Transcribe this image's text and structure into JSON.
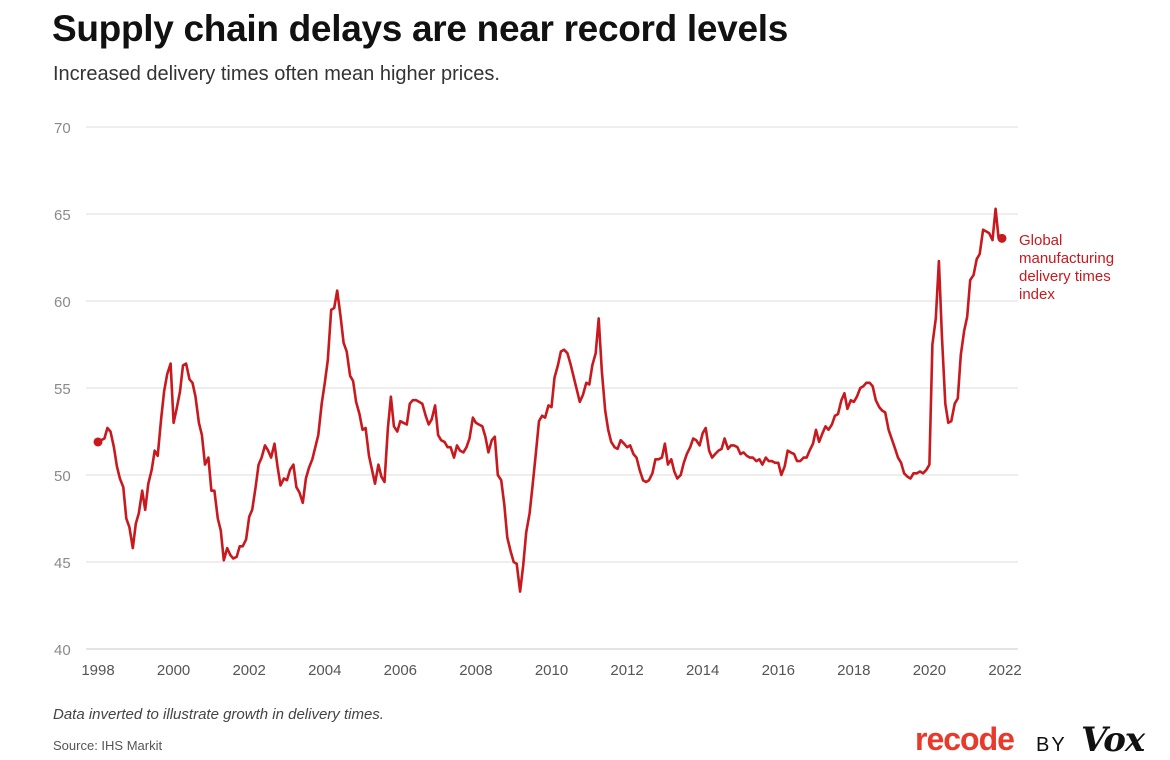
{
  "header": {
    "title": "Supply chain delays are near record levels",
    "subtitle": "Increased delivery times often mean higher prices."
  },
  "footer": {
    "note": "Data inverted to illustrate growth in delivery times.",
    "source": "Source: IHS Markit"
  },
  "brand": {
    "recode": "recode",
    "by": "BY",
    "vox": "Vox",
    "recode_color": "#e8392a"
  },
  "chart_data": {
    "type": "line",
    "xlim": [
      1998,
      2022
    ],
    "ylim": [
      40,
      70
    ],
    "yticks": [
      40,
      45,
      50,
      55,
      60,
      65,
      70
    ],
    "xticks": [
      1998,
      2000,
      2002,
      2004,
      2006,
      2008,
      2010,
      2012,
      2014,
      2016,
      2018,
      2020,
      2022
    ],
    "grid": "horizontal",
    "line_color": "#c8191e",
    "series": [
      {
        "name": "Global manufacturing delivery times index",
        "label_lines": [
          "Global",
          "manufacturing",
          "delivery times",
          "index"
        ],
        "points": [
          [
            1998.0,
            51.9
          ],
          [
            1998.17,
            52.1
          ],
          [
            1998.25,
            52.7
          ],
          [
            1998.33,
            52.5
          ],
          [
            1998.42,
            51.6
          ],
          [
            1998.5,
            50.5
          ],
          [
            1998.58,
            49.8
          ],
          [
            1998.67,
            49.3
          ],
          [
            1998.75,
            47.5
          ],
          [
            1998.83,
            47.0
          ],
          [
            1998.92,
            45.8
          ],
          [
            1999.0,
            47.2
          ],
          [
            1999.08,
            47.8
          ],
          [
            1999.17,
            49.1
          ],
          [
            1999.25,
            48.0
          ],
          [
            1999.33,
            49.5
          ],
          [
            1999.42,
            50.3
          ],
          [
            1999.5,
            51.4
          ],
          [
            1999.58,
            51.1
          ],
          [
            1999.67,
            53.2
          ],
          [
            1999.75,
            54.8
          ],
          [
            1999.83,
            55.8
          ],
          [
            1999.92,
            56.4
          ],
          [
            2000.0,
            53.0
          ],
          [
            2000.08,
            53.8
          ],
          [
            2000.17,
            54.8
          ],
          [
            2000.25,
            56.3
          ],
          [
            2000.33,
            56.4
          ],
          [
            2000.42,
            55.5
          ],
          [
            2000.5,
            55.3
          ],
          [
            2000.58,
            54.5
          ],
          [
            2000.67,
            53.0
          ],
          [
            2000.75,
            52.3
          ],
          [
            2000.83,
            50.6
          ],
          [
            2000.92,
            51.0
          ],
          [
            2001.0,
            49.1
          ],
          [
            2001.08,
            49.1
          ],
          [
            2001.17,
            47.5
          ],
          [
            2001.25,
            46.8
          ],
          [
            2001.33,
            45.1
          ],
          [
            2001.42,
            45.8
          ],
          [
            2001.5,
            45.4
          ],
          [
            2001.58,
            45.2
          ],
          [
            2001.67,
            45.3
          ],
          [
            2001.75,
            45.9
          ],
          [
            2001.83,
            45.9
          ],
          [
            2001.92,
            46.3
          ],
          [
            2002.0,
            47.6
          ],
          [
            2002.08,
            48.0
          ],
          [
            2002.17,
            49.3
          ],
          [
            2002.25,
            50.6
          ],
          [
            2002.33,
            51.0
          ],
          [
            2002.42,
            51.7
          ],
          [
            2002.5,
            51.4
          ],
          [
            2002.58,
            51.0
          ],
          [
            2002.67,
            51.8
          ],
          [
            2002.75,
            50.5
          ],
          [
            2002.83,
            49.4
          ],
          [
            2002.92,
            49.8
          ],
          [
            2003.0,
            49.7
          ],
          [
            2003.08,
            50.3
          ],
          [
            2003.17,
            50.6
          ],
          [
            2003.25,
            49.3
          ],
          [
            2003.33,
            49.0
          ],
          [
            2003.42,
            48.4
          ],
          [
            2003.5,
            49.8
          ],
          [
            2003.58,
            50.4
          ],
          [
            2003.67,
            50.9
          ],
          [
            2003.75,
            51.6
          ],
          [
            2003.83,
            52.3
          ],
          [
            2003.92,
            54.1
          ],
          [
            2004.0,
            55.3
          ],
          [
            2004.08,
            56.6
          ],
          [
            2004.17,
            59.5
          ],
          [
            2004.25,
            59.6
          ],
          [
            2004.33,
            60.6
          ],
          [
            2004.42,
            59.1
          ],
          [
            2004.5,
            57.6
          ],
          [
            2004.58,
            57.1
          ],
          [
            2004.67,
            55.7
          ],
          [
            2004.75,
            55.4
          ],
          [
            2004.83,
            54.2
          ],
          [
            2004.92,
            53.5
          ],
          [
            2005.0,
            52.6
          ],
          [
            2005.08,
            52.7
          ],
          [
            2005.17,
            51.1
          ],
          [
            2005.25,
            50.3
          ],
          [
            2005.33,
            49.5
          ],
          [
            2005.42,
            50.6
          ],
          [
            2005.5,
            49.9
          ],
          [
            2005.58,
            49.6
          ],
          [
            2005.67,
            52.7
          ],
          [
            2005.75,
            54.5
          ],
          [
            2005.83,
            52.8
          ],
          [
            2005.92,
            52.5
          ],
          [
            2006.0,
            53.1
          ],
          [
            2006.08,
            53.0
          ],
          [
            2006.17,
            52.9
          ],
          [
            2006.25,
            54.1
          ],
          [
            2006.33,
            54.3
          ],
          [
            2006.42,
            54.3
          ],
          [
            2006.5,
            54.2
          ],
          [
            2006.58,
            54.1
          ],
          [
            2006.67,
            53.4
          ],
          [
            2006.75,
            52.9
          ],
          [
            2006.83,
            53.2
          ],
          [
            2006.92,
            54.0
          ],
          [
            2007.0,
            52.3
          ],
          [
            2007.08,
            52.0
          ],
          [
            2007.17,
            51.9
          ],
          [
            2007.25,
            51.6
          ],
          [
            2007.33,
            51.6
          ],
          [
            2007.42,
            51.0
          ],
          [
            2007.5,
            51.7
          ],
          [
            2007.58,
            51.4
          ],
          [
            2007.67,
            51.3
          ],
          [
            2007.75,
            51.6
          ],
          [
            2007.83,
            52.1
          ],
          [
            2007.92,
            53.3
          ],
          [
            2008.0,
            53.0
          ],
          [
            2008.08,
            52.9
          ],
          [
            2008.17,
            52.8
          ],
          [
            2008.25,
            52.2
          ],
          [
            2008.33,
            51.3
          ],
          [
            2008.42,
            52.0
          ],
          [
            2008.5,
            52.2
          ],
          [
            2008.58,
            50.0
          ],
          [
            2008.67,
            49.7
          ],
          [
            2008.75,
            48.3
          ],
          [
            2008.83,
            46.4
          ],
          [
            2008.92,
            45.6
          ],
          [
            2009.0,
            45.0
          ],
          [
            2009.08,
            44.9
          ],
          [
            2009.17,
            43.3
          ],
          [
            2009.25,
            44.8
          ],
          [
            2009.33,
            46.7
          ],
          [
            2009.42,
            47.8
          ],
          [
            2009.5,
            49.4
          ],
          [
            2009.58,
            51.1
          ],
          [
            2009.67,
            53.1
          ],
          [
            2009.75,
            53.4
          ],
          [
            2009.83,
            53.3
          ],
          [
            2009.92,
            54.0
          ],
          [
            2010.0,
            53.9
          ],
          [
            2010.08,
            55.6
          ],
          [
            2010.17,
            56.3
          ],
          [
            2010.25,
            57.1
          ],
          [
            2010.33,
            57.2
          ],
          [
            2010.42,
            57.0
          ],
          [
            2010.5,
            56.4
          ],
          [
            2010.58,
            55.7
          ],
          [
            2010.67,
            54.9
          ],
          [
            2010.75,
            54.2
          ],
          [
            2010.83,
            54.6
          ],
          [
            2010.92,
            55.3
          ],
          [
            2011.0,
            55.2
          ],
          [
            2011.08,
            56.3
          ],
          [
            2011.17,
            57.0
          ],
          [
            2011.25,
            59.0
          ],
          [
            2011.33,
            56.0
          ],
          [
            2011.42,
            53.7
          ],
          [
            2011.5,
            52.6
          ],
          [
            2011.58,
            51.9
          ],
          [
            2011.67,
            51.6
          ],
          [
            2011.75,
            51.5
          ],
          [
            2011.83,
            52.0
          ],
          [
            2011.92,
            51.8
          ],
          [
            2012.0,
            51.6
          ],
          [
            2012.08,
            51.7
          ],
          [
            2012.17,
            51.2
          ],
          [
            2012.25,
            51.0
          ],
          [
            2012.33,
            50.3
          ],
          [
            2012.42,
            49.7
          ],
          [
            2012.5,
            49.6
          ],
          [
            2012.58,
            49.7
          ],
          [
            2012.67,
            50.1
          ],
          [
            2012.75,
            50.9
          ],
          [
            2012.83,
            50.9
          ],
          [
            2012.92,
            51.0
          ],
          [
            2013.0,
            51.8
          ],
          [
            2013.08,
            50.6
          ],
          [
            2013.17,
            50.9
          ],
          [
            2013.25,
            50.2
          ],
          [
            2013.33,
            49.8
          ],
          [
            2013.42,
            50.0
          ],
          [
            2013.5,
            50.7
          ],
          [
            2013.58,
            51.2
          ],
          [
            2013.67,
            51.6
          ],
          [
            2013.75,
            52.1
          ],
          [
            2013.83,
            52.0
          ],
          [
            2013.92,
            51.7
          ],
          [
            2014.0,
            52.4
          ],
          [
            2014.08,
            52.7
          ],
          [
            2014.17,
            51.4
          ],
          [
            2014.25,
            51.0
          ],
          [
            2014.33,
            51.2
          ],
          [
            2014.42,
            51.4
          ],
          [
            2014.5,
            51.5
          ],
          [
            2014.58,
            52.1
          ],
          [
            2014.67,
            51.5
          ],
          [
            2014.75,
            51.7
          ],
          [
            2014.83,
            51.7
          ],
          [
            2014.92,
            51.6
          ],
          [
            2015.0,
            51.2
          ],
          [
            2015.08,
            51.3
          ],
          [
            2015.17,
            51.1
          ],
          [
            2015.25,
            51.0
          ],
          [
            2015.33,
            51.0
          ],
          [
            2015.42,
            50.8
          ],
          [
            2015.5,
            50.9
          ],
          [
            2015.58,
            50.6
          ],
          [
            2015.67,
            51.0
          ],
          [
            2015.75,
            50.8
          ],
          [
            2015.83,
            50.8
          ],
          [
            2015.92,
            50.7
          ],
          [
            2016.0,
            50.7
          ],
          [
            2016.08,
            50.0
          ],
          [
            2016.17,
            50.5
          ],
          [
            2016.25,
            51.4
          ],
          [
            2016.33,
            51.3
          ],
          [
            2016.42,
            51.2
          ],
          [
            2016.5,
            50.8
          ],
          [
            2016.58,
            50.8
          ],
          [
            2016.67,
            51.0
          ],
          [
            2016.75,
            51.0
          ],
          [
            2016.83,
            51.4
          ],
          [
            2016.92,
            51.8
          ],
          [
            2017.0,
            52.6
          ],
          [
            2017.08,
            51.9
          ],
          [
            2017.17,
            52.4
          ],
          [
            2017.25,
            52.8
          ],
          [
            2017.33,
            52.6
          ],
          [
            2017.42,
            52.9
          ],
          [
            2017.5,
            53.4
          ],
          [
            2017.58,
            53.5
          ],
          [
            2017.67,
            54.3
          ],
          [
            2017.75,
            54.7
          ],
          [
            2017.83,
            53.8
          ],
          [
            2017.92,
            54.3
          ],
          [
            2018.0,
            54.2
          ],
          [
            2018.08,
            54.5
          ],
          [
            2018.17,
            55.0
          ],
          [
            2018.25,
            55.1
          ],
          [
            2018.33,
            55.3
          ],
          [
            2018.42,
            55.3
          ],
          [
            2018.5,
            55.1
          ],
          [
            2018.58,
            54.3
          ],
          [
            2018.67,
            53.9
          ],
          [
            2018.75,
            53.7
          ],
          [
            2018.83,
            53.6
          ],
          [
            2018.92,
            52.6
          ],
          [
            2019.0,
            52.1
          ],
          [
            2019.08,
            51.6
          ],
          [
            2019.17,
            51.0
          ],
          [
            2019.25,
            50.7
          ],
          [
            2019.33,
            50.1
          ],
          [
            2019.42,
            49.9
          ],
          [
            2019.5,
            49.8
          ],
          [
            2019.58,
            50.1
          ],
          [
            2019.67,
            50.1
          ],
          [
            2019.75,
            50.2
          ],
          [
            2019.83,
            50.1
          ],
          [
            2019.92,
            50.3
          ],
          [
            2020.0,
            50.6
          ],
          [
            2020.08,
            57.5
          ],
          [
            2020.17,
            59.0
          ],
          [
            2020.25,
            62.3
          ],
          [
            2020.33,
            58.0
          ],
          [
            2020.42,
            54.1
          ],
          [
            2020.5,
            53.0
          ],
          [
            2020.58,
            53.1
          ],
          [
            2020.67,
            54.1
          ],
          [
            2020.75,
            54.4
          ],
          [
            2020.83,
            56.9
          ],
          [
            2020.92,
            58.3
          ],
          [
            2021.0,
            59.1
          ],
          [
            2021.08,
            61.2
          ],
          [
            2021.17,
            61.5
          ],
          [
            2021.25,
            62.4
          ],
          [
            2021.33,
            62.7
          ],
          [
            2021.42,
            64.1
          ],
          [
            2021.5,
            64.0
          ],
          [
            2021.58,
            63.9
          ],
          [
            2021.67,
            63.5
          ],
          [
            2021.75,
            65.3
          ],
          [
            2021.83,
            63.6
          ],
          [
            2021.92,
            63.6
          ]
        ]
      }
    ]
  }
}
